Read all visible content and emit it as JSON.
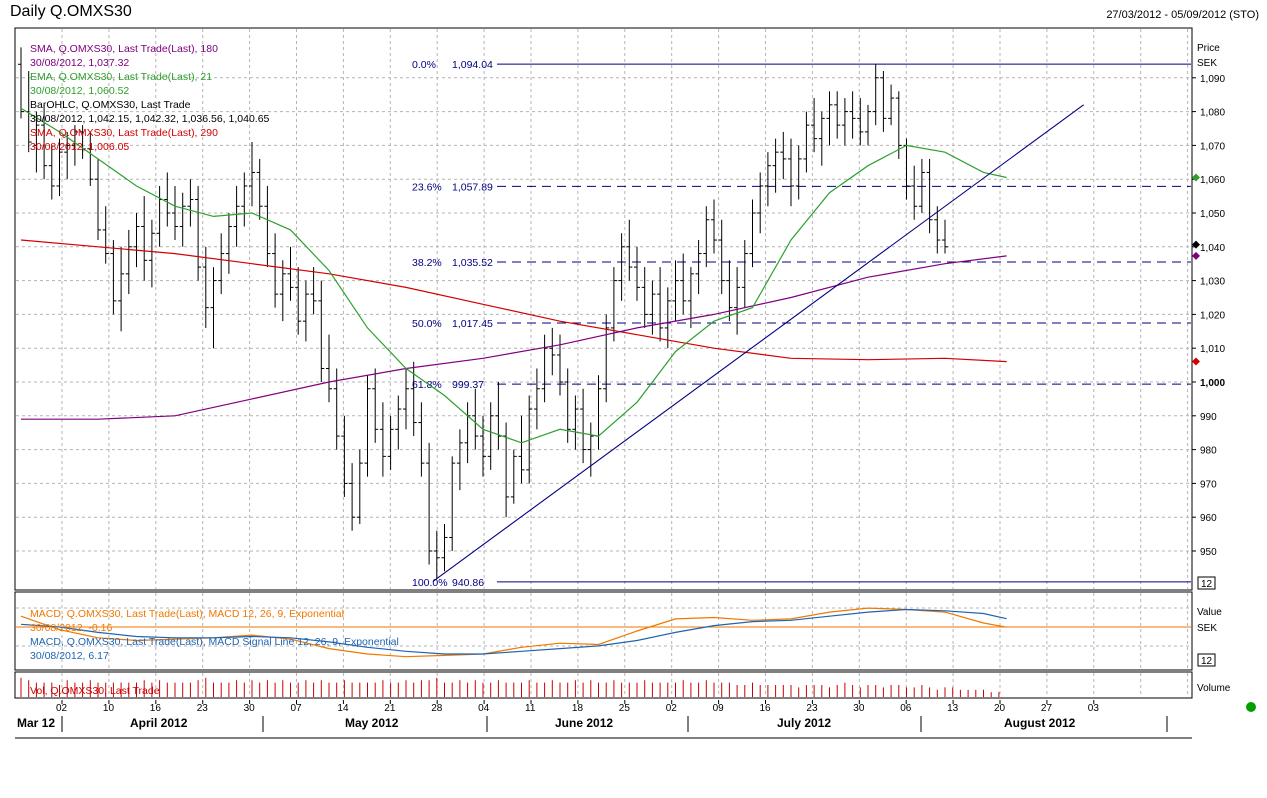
{
  "header": {
    "title": "Daily Q.OMXS30",
    "date_range": "27/03/2012 - 05/09/2012 (STO)"
  },
  "colors": {
    "grid": "#b4b4b4",
    "price_bars": "#000000",
    "sma180": "#800080",
    "ema21": "#2ea02e",
    "sma290": "#d40000",
    "fib": "#000080",
    "trend": "#000080",
    "macd": "#f07800",
    "signal": "#1e64b4",
    "volume": "#cc0000",
    "status_dot": "#00a000"
  },
  "price_panel": {
    "axis_title": "Price",
    "axis_unit": "SEK",
    "ticks": [
      "950",
      "960",
      "970",
      "980",
      "990",
      "1,000",
      "1,010",
      "1,020",
      "1,030",
      "1,040",
      "1,050",
      "1,060",
      "1,070",
      "1,080",
      "1,090"
    ],
    "tick_values": [
      950,
      960,
      970,
      980,
      990,
      1000,
      1010,
      1020,
      1030,
      1040,
      1050,
      1060,
      1070,
      1080,
      1090
    ],
    "bold_tick": "1,000",
    "scale_badge": "12",
    "legend": [
      {
        "name": "SMA, Q.OMXS30, Last Trade(Last), 180",
        "value": "30/08/2012, 1,037.32",
        "color": "#800080"
      },
      {
        "name": "EMA, Q.OMXS30, Last Trade(Last), 21",
        "value": "30/08/2012, 1,060.52",
        "color": "#2ea02e"
      },
      {
        "name": "BarOHLC, Q.OMXS30, Last Trade",
        "value": "30/08/2012, 1,042.15, 1,042.32, 1,036.56, 1,040.65",
        "color": "#000000"
      },
      {
        "name": "SMA, Q.OMXS30, Last Trade(Last), 290",
        "value": "30/08/2012, 1,006.05",
        "color": "#d40000"
      }
    ],
    "fib_levels": [
      {
        "pct": "0.0%",
        "value": "1,094.04",
        "price": 1094.04,
        "solid": true
      },
      {
        "pct": "23.6%",
        "value": "1,057.89",
        "price": 1057.89,
        "solid": false
      },
      {
        "pct": "38.2%",
        "value": "1,035.52",
        "price": 1035.52,
        "solid": false
      },
      {
        "pct": "50.0%",
        "value": "1,017.45",
        "price": 1017.45,
        "solid": false
      },
      {
        "pct": "61.8%",
        "value": "999.37",
        "price": 999.37,
        "solid": false
      },
      {
        "pct": "100.0%",
        "value": "940.86",
        "price": 940.86,
        "solid": true
      }
    ]
  },
  "macd_panel": {
    "axis_title": "Value",
    "axis_unit": "SEK",
    "scale_badge": "12",
    "legend": [
      {
        "name": "MACD, Q.OMXS30, Last Trade(Last), MACD 12, 26, 9, Exponential",
        "value": "30/08/2012, -0.16",
        "color": "#f07800"
      },
      {
        "name": "MACD, Q.OMXS30, Last Trade(Last), MACD Signal Line 12, 26, 9, Exponential",
        "value": "30/08/2012, 6.17",
        "color": "#1e64b4"
      }
    ]
  },
  "volume_panel": {
    "axis_title": "Volume",
    "legend": "Vol, Q.OMXS30, Last Trade"
  },
  "time_axis": {
    "day_ticks": [
      "02",
      "10",
      "16",
      "23",
      "30",
      "07",
      "14",
      "21",
      "28",
      "04",
      "11",
      "18",
      "25",
      "02",
      "09",
      "16",
      "23",
      "30",
      "06",
      "13",
      "20",
      "27",
      "03"
    ],
    "months": [
      "Mar 12",
      "April 2012",
      "May 2012",
      "June 2012",
      "July 2012",
      "August 2012"
    ]
  },
  "chart_data": {
    "type": "ohlc",
    "title": "Daily Q.OMXS30",
    "date_range": "27/03/2012 - 05/09/2012",
    "y_unit": "SEK",
    "ylim": [
      941,
      1099
    ],
    "grid": true,
    "bars_ohlc": [
      [
        1094,
        1099,
        1078,
        1080
      ],
      [
        1080,
        1092,
        1068,
        1071
      ],
      [
        1070,
        1080,
        1062,
        1076
      ],
      [
        1076,
        1082,
        1060,
        1064
      ],
      [
        1064,
        1070,
        1054,
        1058
      ],
      [
        1058,
        1072,
        1055,
        1068
      ],
      [
        1068,
        1074,
        1060,
        1070
      ],
      [
        1070,
        1076,
        1064,
        1074
      ],
      [
        1074,
        1076,
        1066,
        1069
      ],
      [
        1069,
        1074,
        1058,
        1060
      ],
      [
        1060,
        1066,
        1042,
        1045
      ],
      [
        1045,
        1052,
        1035,
        1038
      ],
      [
        1038,
        1042,
        1020,
        1024
      ],
      [
        1024,
        1040,
        1015,
        1032
      ],
      [
        1032,
        1045,
        1026,
        1040
      ],
      [
        1040,
        1050,
        1034,
        1046
      ],
      [
        1046,
        1055,
        1030,
        1036
      ],
      [
        1036,
        1048,
        1028,
        1044
      ],
      [
        1044,
        1058,
        1040,
        1054
      ],
      [
        1054,
        1062,
        1046,
        1050
      ],
      [
        1050,
        1058,
        1042,
        1046
      ],
      [
        1046,
        1056,
        1040,
        1052
      ],
      [
        1052,
        1060,
        1046,
        1054
      ],
      [
        1054,
        1058,
        1030,
        1034
      ],
      [
        1034,
        1040,
        1016,
        1022
      ],
      [
        1022,
        1034,
        1010,
        1030
      ],
      [
        1030,
        1044,
        1026,
        1038
      ],
      [
        1038,
        1050,
        1032,
        1046
      ],
      [
        1046,
        1058,
        1040,
        1052
      ],
      [
        1052,
        1062,
        1046,
        1058
      ],
      [
        1058,
        1071,
        1052,
        1062
      ],
      [
        1062,
        1066,
        1048,
        1052
      ],
      [
        1052,
        1058,
        1034,
        1038
      ],
      [
        1038,
        1044,
        1022,
        1026
      ],
      [
        1026,
        1036,
        1018,
        1032
      ],
      [
        1032,
        1040,
        1024,
        1028
      ],
      [
        1028,
        1034,
        1014,
        1018
      ],
      [
        1018,
        1030,
        1012,
        1026
      ],
      [
        1026,
        1034,
        1020,
        1024
      ],
      [
        1024,
        1030,
        1000,
        1004
      ],
      [
        1004,
        1014,
        994,
        998
      ],
      [
        998,
        1004,
        980,
        984
      ],
      [
        984,
        990,
        966,
        970
      ],
      [
        970,
        976,
        956,
        960
      ],
      [
        960,
        980,
        958,
        976
      ],
      [
        976,
        1002,
        972,
        998
      ],
      [
        998,
        1004,
        982,
        986
      ],
      [
        986,
        994,
        972,
        978
      ],
      [
        978,
        990,
        974,
        986
      ],
      [
        986,
        996,
        980,
        992
      ],
      [
        992,
        1004,
        986,
        998
      ],
      [
        998,
        1006,
        984,
        988
      ],
      [
        988,
        994,
        972,
        976
      ],
      [
        976,
        982,
        946,
        950
      ],
      [
        950,
        956,
        942,
        948
      ],
      [
        948,
        958,
        944,
        954
      ],
      [
        954,
        978,
        950,
        976
      ],
      [
        976,
        986,
        968,
        982
      ],
      [
        982,
        994,
        976,
        990
      ],
      [
        990,
        998,
        980,
        984
      ],
      [
        984,
        990,
        972,
        978
      ],
      [
        978,
        994,
        974,
        990
      ],
      [
        990,
        1000,
        980,
        984
      ],
      [
        984,
        988,
        960,
        966
      ],
      [
        966,
        980,
        964,
        978
      ],
      [
        978,
        990,
        970,
        974
      ],
      [
        974,
        996,
        970,
        992
      ],
      [
        992,
        1004,
        986,
        998
      ],
      [
        998,
        1014,
        994,
        1010
      ],
      [
        1010,
        1016,
        1002,
        1008
      ],
      [
        1008,
        1014,
        996,
        1000
      ],
      [
        1000,
        1004,
        982,
        986
      ],
      [
        986,
        996,
        980,
        992
      ],
      [
        992,
        998,
        976,
        980
      ],
      [
        980,
        988,
        972,
        984
      ],
      [
        984,
        1002,
        980,
        998
      ],
      [
        998,
        1020,
        994,
        1016
      ],
      [
        1016,
        1034,
        1012,
        1030
      ],
      [
        1030,
        1044,
        1024,
        1040
      ],
      [
        1040,
        1048,
        1030,
        1034
      ],
      [
        1034,
        1040,
        1024,
        1028
      ],
      [
        1028,
        1034,
        1016,
        1020
      ],
      [
        1020,
        1030,
        1014,
        1026
      ],
      [
        1026,
        1034,
        1012,
        1016
      ],
      [
        1016,
        1028,
        1010,
        1024
      ],
      [
        1024,
        1036,
        1018,
        1030
      ],
      [
        1030,
        1038,
        1020,
        1024
      ],
      [
        1024,
        1034,
        1016,
        1032
      ],
      [
        1032,
        1042,
        1026,
        1038
      ],
      [
        1038,
        1052,
        1034,
        1048
      ],
      [
        1048,
        1054,
        1038,
        1042
      ],
      [
        1042,
        1048,
        1026,
        1030
      ],
      [
        1030,
        1036,
        1018,
        1022
      ],
      [
        1022,
        1034,
        1014,
        1028
      ],
      [
        1028,
        1042,
        1022,
        1038
      ],
      [
        1038,
        1054,
        1034,
        1050
      ],
      [
        1050,
        1062,
        1044,
        1058
      ],
      [
        1058,
        1068,
        1052,
        1064
      ],
      [
        1064,
        1072,
        1056,
        1068
      ],
      [
        1068,
        1074,
        1060,
        1066
      ],
      [
        1066,
        1072,
        1052,
        1058
      ],
      [
        1058,
        1070,
        1054,
        1066
      ],
      [
        1066,
        1080,
        1062,
        1076
      ],
      [
        1076,
        1084,
        1068,
        1072
      ],
      [
        1072,
        1080,
        1064,
        1078
      ],
      [
        1078,
        1086,
        1070,
        1082
      ],
      [
        1082,
        1086,
        1072,
        1076
      ],
      [
        1076,
        1084,
        1070,
        1080
      ],
      [
        1080,
        1086,
        1072,
        1078
      ],
      [
        1078,
        1084,
        1070,
        1074
      ],
      [
        1074,
        1082,
        1070,
        1080
      ],
      [
        1080,
        1094,
        1076,
        1090
      ],
      [
        1090,
        1092,
        1074,
        1078
      ],
      [
        1078,
        1088,
        1076,
        1084
      ],
      [
        1084,
        1086,
        1066,
        1070
      ],
      [
        1070,
        1072,
        1054,
        1058
      ],
      [
        1058,
        1064,
        1048,
        1052
      ],
      [
        1052,
        1066,
        1050,
        1062
      ],
      [
        1062,
        1066,
        1044,
        1048
      ],
      [
        1048,
        1052,
        1038,
        1042
      ],
      [
        1042,
        1048,
        1038,
        1040
      ]
    ],
    "sma180": {
      "name": "SMA, Q.OMXS30, Last Trade(Last), 180",
      "x": [
        0,
        10,
        20,
        30,
        40,
        50,
        60,
        70,
        80,
        90,
        100,
        110,
        120,
        128
      ],
      "y": [
        989,
        989,
        990,
        995,
        1000,
        1004,
        1007,
        1011,
        1016,
        1020,
        1025,
        1031,
        1035,
        1037.3
      ]
    },
    "ema21": {
      "name": "EMA, Q.OMXS30, Last Trade(Last), 21",
      "x": [
        0,
        5,
        10,
        15,
        20,
        25,
        30,
        35,
        40,
        45,
        50,
        55,
        60,
        65,
        70,
        75,
        80,
        85,
        90,
        95,
        100,
        105,
        110,
        115,
        120,
        125,
        128
      ],
      "y": [
        1081,
        1074,
        1066,
        1058,
        1052,
        1049,
        1050,
        1045,
        1033,
        1016,
        1004,
        996,
        986,
        982,
        986,
        984,
        994,
        1009,
        1018,
        1022,
        1042,
        1056,
        1064,
        1070,
        1068,
        1062,
        1060.5
      ]
    },
    "sma290": {
      "name": "SMA, Q.OMXS30, Last Trade(Last), 290",
      "x": [
        0,
        10,
        20,
        30,
        40,
        50,
        60,
        70,
        80,
        90,
        100,
        110,
        120,
        128
      ],
      "y": [
        1042,
        1040,
        1038,
        1035,
        1032,
        1028,
        1023,
        1018,
        1014,
        1010,
        1007,
        1006.6,
        1007,
        1006.05
      ]
    },
    "trendline": {
      "x": [
        53.5,
        138
      ],
      "y": [
        941,
        1082
      ]
    },
    "fibonacci": {
      "high": 1094.04,
      "low": 940.86,
      "levels": [
        0,
        23.6,
        38.2,
        50.0,
        61.8,
        100.0
      ]
    },
    "macd": {
      "name": "MACD, Q.OMXS30, Last Trade(Last), MACD 12, 26, 9, Exponential",
      "x": [
        0,
        5,
        10,
        15,
        20,
        25,
        30,
        35,
        40,
        45,
        50,
        55,
        60,
        65,
        70,
        75,
        80,
        85,
        90,
        95,
        100,
        105,
        110,
        115,
        120,
        125,
        128
      ],
      "y": [
        8,
        -2,
        -8,
        -10,
        -9,
        -8,
        -6,
        -9,
        -16,
        -20,
        -22,
        -21,
        -20,
        -15,
        -12,
        -13,
        -3,
        6,
        7,
        5,
        6,
        11,
        14,
        13,
        11,
        3,
        -0.16
      ]
    },
    "macd_signal": {
      "name": "MACD, Q.OMXS30, Last Trade(Last), MACD Signal Line 12, 26, 9, Exponential",
      "x": [
        0,
        5,
        10,
        15,
        20,
        25,
        30,
        35,
        40,
        45,
        50,
        55,
        60,
        65,
        70,
        75,
        80,
        85,
        90,
        95,
        100,
        105,
        110,
        115,
        120,
        125,
        128
      ],
      "y": [
        2,
        0,
        -4,
        -7,
        -8,
        -8,
        -7,
        -8,
        -11,
        -15,
        -18,
        -20,
        -20,
        -18,
        -16,
        -14,
        -10,
        -4,
        1,
        4,
        5,
        8,
        11,
        13,
        12,
        10,
        6.17
      ]
    },
    "volume": {
      "name": "Vol, Q.OMXS30, Last Trade",
      "values": [
        0.8,
        0.7,
        0.6,
        0.6,
        0.6,
        0.5,
        0.7,
        0.6,
        0.6,
        0.7,
        0.6,
        0.6,
        0.6,
        0.6,
        0.6,
        0.6,
        0.7,
        0.6,
        0.7,
        0.6,
        0.6,
        0.6,
        0.6,
        0.7,
        0.8,
        0.6,
        0.6,
        0.6,
        0.7,
        0.6,
        0.7,
        0.6,
        0.7,
        0.6,
        0.7,
        0.6,
        0.6,
        0.7,
        0.6,
        0.7,
        0.6,
        0.6,
        0.7,
        0.6,
        0.6,
        0.6,
        0.6,
        0.7,
        0.6,
        0.6,
        0.7,
        0.6,
        0.7,
        0.7,
        0.8,
        0.6,
        0.6,
        0.7,
        0.6,
        0.7,
        0.6,
        0.6,
        0.7,
        0.6,
        0.6,
        0.6,
        0.7,
        0.6,
        0.6,
        0.7,
        0.6,
        0.6,
        0.7,
        0.6,
        0.7,
        0.6,
        0.6,
        0.7,
        0.6,
        0.6,
        0.6,
        0.7,
        0.6,
        0.6,
        0.6,
        0.6,
        0.7,
        0.6,
        0.6,
        0.7,
        0.6,
        0.6,
        0.6,
        0.5,
        0.5,
        0.6,
        0.5,
        0.5,
        0.5,
        0.5,
        0.5,
        0.4,
        0.5,
        0.5,
        0.5,
        0.4,
        0.5,
        0.6,
        0.5,
        0.4,
        0.5,
        0.5,
        0.4,
        0.5,
        0.5,
        0.4,
        0.4,
        0.5,
        0.4,
        0.3,
        0.4,
        0.4,
        0.3,
        0.3,
        0.3,
        0.3,
        0.2,
        0.2
      ]
    },
    "last_markers": [
      {
        "label": "EMA 21",
        "value": 1060.52
      },
      {
        "label": "BarOHLC close",
        "value": 1040.65
      },
      {
        "label": "SMA 180",
        "value": 1037.32
      },
      {
        "label": "SMA 290",
        "value": 1006.05
      }
    ]
  }
}
